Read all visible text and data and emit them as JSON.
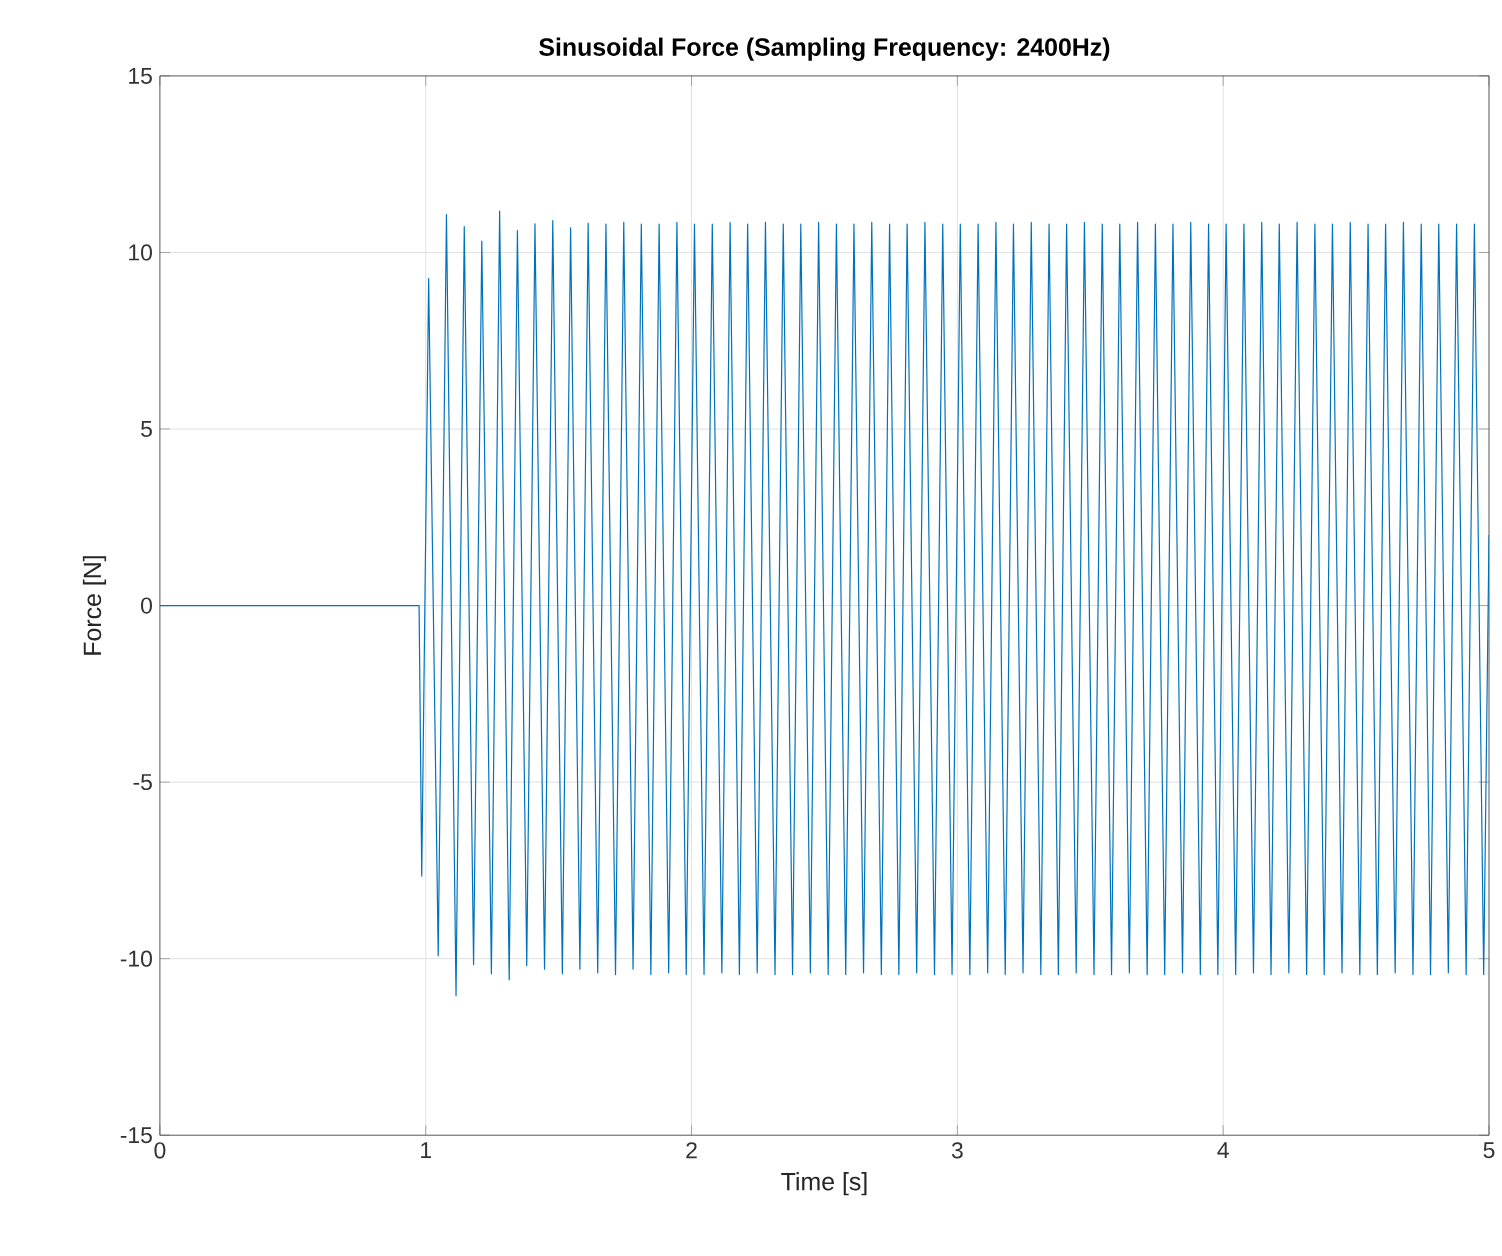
{
  "chart_data": {
    "type": "line",
    "title": "Sinusoidal Force (Sampling Frequency: 2400Hz)",
    "xlabel": "Time [s]",
    "ylabel": "Force [N]",
    "xlim": [
      0,
      5
    ],
    "ylim": [
      -15,
      15
    ],
    "xticks": [
      0,
      1,
      2,
      3,
      4,
      5
    ],
    "yticks": [
      -15,
      -10,
      -5,
      0,
      5,
      10,
      15
    ],
    "grid": true,
    "series": [
      {
        "color": "#0072bd",
        "x": [
          0,
          0.5,
          0.975,
          0.985,
          1.011,
          1.047,
          1.078,
          1.114,
          1.145,
          1.18,
          1.211,
          1.247,
          1.278,
          1.314,
          1.345,
          1.38,
          1.411,
          1.447,
          1.478,
          1.514,
          1.545,
          1.58,
          1.611,
          1.647,
          1.678,
          1.714,
          1.745,
          1.78,
          1.811,
          1.847,
          1.878,
          1.914,
          1.945,
          1.98,
          2.011,
          2.047,
          2.078,
          2.114,
          2.145,
          2.18,
          2.211,
          2.247,
          2.278,
          2.314,
          2.345,
          2.38,
          2.411,
          2.447,
          2.478,
          2.514,
          2.545,
          2.58,
          2.611,
          2.647,
          2.678,
          2.714,
          2.745,
          2.78,
          2.811,
          2.847,
          2.878,
          2.914,
          2.945,
          2.98,
          3.011,
          3.047,
          3.078,
          3.114,
          3.145,
          3.18,
          3.211,
          3.247,
          3.278,
          3.314,
          3.345,
          3.38,
          3.411,
          3.447,
          3.478,
          3.514,
          3.545,
          3.58,
          3.611,
          3.647,
          3.678,
          3.714,
          3.745,
          3.78,
          3.811,
          3.847,
          3.878,
          3.914,
          3.945,
          3.98,
          4.011,
          4.047,
          4.078,
          4.114,
          4.145,
          4.18,
          4.211,
          4.247,
          4.278,
          4.314,
          4.345,
          4.38,
          4.411,
          4.447,
          4.478,
          4.514,
          4.545,
          4.58,
          4.611,
          4.647,
          4.678,
          4.714,
          4.745,
          4.78,
          4.811,
          4.847,
          4.878,
          4.914,
          4.945,
          4.98,
          5.0
        ],
        "values": [
          0,
          0,
          0,
          -7.66,
          9.26,
          -9.92,
          11.07,
          -11.05,
          10.73,
          -10.17,
          10.32,
          -10.43,
          11.17,
          -10.6,
          10.62,
          -10.2,
          10.81,
          -10.3,
          10.9,
          -10.43,
          10.7,
          -10.3,
          10.83,
          -10.4,
          10.8,
          -10.45,
          10.85,
          -10.3,
          10.8,
          -10.45,
          10.8,
          -10.4,
          10.85,
          -10.45,
          10.8,
          -10.45,
          10.8,
          -10.4,
          10.85,
          -10.45,
          10.8,
          -10.4,
          10.85,
          -10.45,
          10.8,
          -10.45,
          10.8,
          -10.4,
          10.85,
          -10.45,
          10.8,
          -10.45,
          10.8,
          -10.4,
          10.85,
          -10.45,
          10.8,
          -10.45,
          10.8,
          -10.4,
          10.85,
          -10.45,
          10.8,
          -10.45,
          10.8,
          -10.45,
          10.8,
          -10.4,
          10.85,
          -10.45,
          10.8,
          -10.4,
          10.85,
          -10.45,
          10.8,
          -10.45,
          10.8,
          -10.4,
          10.85,
          -10.45,
          10.8,
          -10.45,
          10.8,
          -10.4,
          10.85,
          -10.45,
          10.8,
          -10.45,
          10.8,
          -10.4,
          10.85,
          -10.45,
          10.8,
          -10.45,
          10.8,
          -10.45,
          10.8,
          -10.4,
          10.85,
          -10.45,
          10.8,
          -10.4,
          10.85,
          -10.45,
          10.8,
          -10.45,
          10.8,
          -10.4,
          10.85,
          -10.45,
          10.8,
          -10.45,
          10.8,
          -10.4,
          10.85,
          -10.45,
          10.8,
          -10.45,
          10.8,
          -10.4,
          10.8,
          -10.45,
          10.8,
          -10.45,
          2.0
        ]
      }
    ]
  }
}
